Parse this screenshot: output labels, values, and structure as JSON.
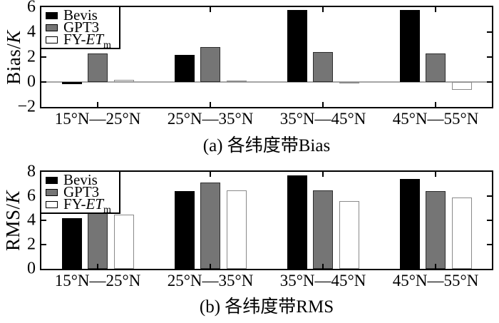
{
  "figure": {
    "description": "Two stacked grouped bar charts comparing Bevis, GPT3 and FY-ETm models by latitude band",
    "background": "#ffffff",
    "axis_color": "#000000",
    "zero_line_color": "#a6a6a6"
  },
  "chart_data": [
    {
      "type": "bar",
      "title": "(a) 各纬度带Bias",
      "ylabel": "Bias/K",
      "ylabel_parts": {
        "text": "Bias/",
        "italic": "K"
      },
      "xlabel": "",
      "categories": [
        "15°N—25°N",
        "25°N—35°N",
        "35°N—45°N",
        "45°N—55°N"
      ],
      "ylim": [
        -2,
        6
      ],
      "yticks": [
        6,
        4,
        2,
        0,
        -2
      ],
      "ytick_labels": [
        "6",
        "4",
        "2",
        "0",
        "−2"
      ],
      "grid": false,
      "zero_line": true,
      "legend_position": "top-left",
      "series": [
        {
          "name": "Bevis",
          "color": "#000000",
          "border_color": "#000000",
          "legend_label": {
            "text": "Bevis"
          },
          "values": [
            -0.15,
            2.2,
            5.8,
            5.8
          ]
        },
        {
          "name": "GPT3",
          "color": "#757575",
          "border_color": "#2e2e2e",
          "legend_label": {
            "text": "GPT3"
          },
          "values": [
            2.3,
            2.8,
            2.4,
            2.3
          ]
        },
        {
          "name": "FY-ETm",
          "color": "#ffffff",
          "border_color": "#8a8a8a",
          "legend_label": {
            "text": "FY-",
            "italic": "ET",
            "sub": "m"
          },
          "values": [
            0.2,
            0.1,
            -0.1,
            -0.6
          ]
        }
      ]
    },
    {
      "type": "bar",
      "title": "(b) 各纬度带RMS",
      "ylabel": "RMS/K",
      "ylabel_parts": {
        "text": "RMS/",
        "italic": "K"
      },
      "xlabel": "",
      "categories": [
        "15°N—25°N",
        "25°N—35°N",
        "35°N—45°N",
        "45°N—55°N"
      ],
      "ylim": [
        0,
        8
      ],
      "yticks": [
        8,
        6,
        4,
        2,
        0
      ],
      "ytick_labels": [
        "8",
        "6",
        "4",
        "2",
        "0"
      ],
      "grid": false,
      "zero_line": false,
      "legend_position": "top-left",
      "series": [
        {
          "name": "Bevis",
          "color": "#000000",
          "border_color": "#000000",
          "legend_label": {
            "text": "Bevis"
          },
          "values": [
            4.2,
            6.4,
            7.7,
            7.4
          ]
        },
        {
          "name": "GPT3",
          "color": "#757575",
          "border_color": "#2e2e2e",
          "legend_label": {
            "text": "GPT3"
          },
          "values": [
            4.6,
            7.1,
            6.5,
            6.4
          ]
        },
        {
          "name": "FY-ETm",
          "color": "#ffffff",
          "border_color": "#8a8a8a",
          "legend_label": {
            "text": "FY-",
            "italic": "ET",
            "sub": "m"
          },
          "values": [
            4.5,
            6.5,
            5.6,
            5.9
          ]
        }
      ]
    }
  ]
}
